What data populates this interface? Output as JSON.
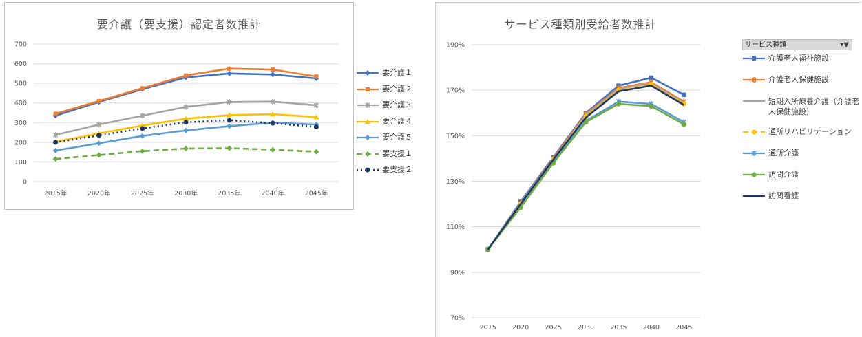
{
  "chart_data": [
    {
      "type": "line",
      "title": "要介護（要支援）認定者数推計",
      "categories": [
        "2015年",
        "2020年",
        "2025年",
        "2030年",
        "2035年",
        "2040年",
        "2045年"
      ],
      "ylim": [
        0,
        700
      ],
      "yticks": [
        "0",
        "100",
        "200",
        "300",
        "400",
        "500",
        "600",
        "700"
      ],
      "grid": true,
      "legend_position": "right",
      "series": [
        {
          "name": "要介護１",
          "color": "#4472c4",
          "dash": "solid",
          "marker": "diamond",
          "values": [
            335,
            405,
            470,
            530,
            550,
            545,
            525
          ]
        },
        {
          "name": "要介護２",
          "color": "#ed7d31",
          "dash": "solid",
          "marker": "square",
          "values": [
            345,
            410,
            475,
            540,
            575,
            570,
            535
          ]
        },
        {
          "name": "要介護３",
          "color": "#a5a5a5",
          "dash": "solid",
          "marker": "star",
          "values": [
            237,
            290,
            335,
            380,
            405,
            407,
            388
          ]
        },
        {
          "name": "要介護４",
          "color": "#ffc000",
          "dash": "solid",
          "marker": "triangle",
          "values": [
            202,
            245,
            285,
            320,
            338,
            343,
            328
          ]
        },
        {
          "name": "要介護５",
          "color": "#5b9bd5",
          "dash": "solid",
          "marker": "diamond",
          "values": [
            158,
            195,
            232,
            260,
            282,
            300,
            290
          ]
        },
        {
          "name": "要支援１",
          "color": "#70ad47",
          "dash": "dashed",
          "marker": "diamond",
          "values": [
            115,
            135,
            155,
            168,
            170,
            162,
            152
          ]
        },
        {
          "name": "要支援２",
          "color": "#1f3864",
          "dash": "dotted",
          "marker": "circle",
          "values": [
            200,
            235,
            270,
            302,
            312,
            297,
            278
          ]
        }
      ]
    },
    {
      "type": "line",
      "title": "サービス種類別受給者数推計",
      "categories": [
        "2015",
        "2020",
        "2025",
        "2030",
        "2035",
        "2040",
        "2045"
      ],
      "ylim": [
        0.7,
        1.9
      ],
      "yticks": [
        "70%",
        "90%",
        "110%",
        "130%",
        "150%",
        "170%",
        "190%"
      ],
      "grid": true,
      "legend_position": "right",
      "legend_header": "サービス種類",
      "series": [
        {
          "name": "介護老人福祉施設",
          "color": "#4472c4",
          "dash": "solid",
          "marker": "square",
          "values": [
            1.0,
            1.21,
            1.405,
            1.6,
            1.72,
            1.755,
            1.68
          ]
        },
        {
          "name": "介護老人保健施設",
          "color": "#ed7d31",
          "dash": "solid",
          "marker": "star",
          "values": [
            1.0,
            1.205,
            1.4,
            1.595,
            1.71,
            1.735,
            1.65
          ]
        },
        {
          "name": "短期入所療養介護（介護老人保健施設）",
          "color": "#a5a5a5",
          "dash": "solid",
          "marker": "none",
          "values": [
            1.0,
            1.205,
            1.395,
            1.59,
            1.705,
            1.73,
            1.645
          ]
        },
        {
          "name": "通所リハビリテーション",
          "color": "#ffc000",
          "dash": "dashed",
          "marker": "circle",
          "values": [
            1.0,
            1.2,
            1.395,
            1.585,
            1.7,
            1.725,
            1.64
          ]
        },
        {
          "name": "通所介護",
          "color": "#5b9bd5",
          "dash": "solid",
          "marker": "star",
          "values": [
            1.0,
            1.19,
            1.385,
            1.565,
            1.65,
            1.64,
            1.56
          ]
        },
        {
          "name": "訪問介護",
          "color": "#70ad47",
          "dash": "solid",
          "marker": "circle",
          "values": [
            1.0,
            1.185,
            1.38,
            1.56,
            1.64,
            1.63,
            1.55
          ]
        },
        {
          "name": "訪問看護",
          "color": "#1f3864",
          "dash": "solid",
          "marker": "none",
          "values": [
            1.0,
            1.2,
            1.395,
            1.58,
            1.695,
            1.72,
            1.635
          ]
        }
      ]
    }
  ]
}
